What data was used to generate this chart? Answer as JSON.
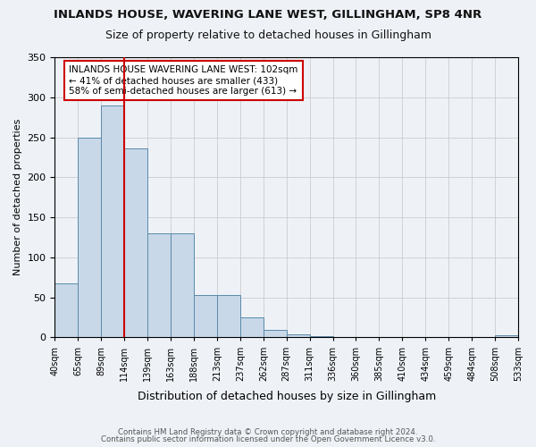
{
  "title": "INLANDS HOUSE, WAVERING LANE WEST, GILLINGHAM, SP8 4NR",
  "subtitle": "Size of property relative to detached houses in Gillingham",
  "xlabel": "Distribution of detached houses by size in Gillingham",
  "ylabel": "Number of detached properties",
  "bar_values": [
    68,
    250,
    290,
    236,
    130,
    130,
    53,
    53,
    25,
    10,
    4,
    2,
    1,
    1,
    0,
    1,
    0,
    0,
    0,
    3
  ],
  "categories": [
    "40sqm",
    "65sqm",
    "89sqm",
    "114sqm",
    "139sqm",
    "163sqm",
    "188sqm",
    "213sqm",
    "237sqm",
    "262sqm",
    "287sqm",
    "311sqm",
    "336sqm",
    "360sqm",
    "385sqm",
    "410sqm",
    "434sqm",
    "459sqm",
    "484sqm",
    "508sqm",
    "533sqm"
  ],
  "bar_color": "#c8d8e8",
  "bar_edge_color": "#5a8aaa",
  "property_line_x": 2.5,
  "annotation_text": "INLANDS HOUSE WAVERING LANE WEST: 102sqm\n← 41% of detached houses are smaller (433)\n58% of semi-detached houses are larger (613) →",
  "annotation_box_color": "#ffffff",
  "annotation_box_edge": "#cc0000",
  "vline_color": "#cc0000",
  "ylim": [
    0,
    350
  ],
  "yticks": [
    0,
    50,
    100,
    150,
    200,
    250,
    300,
    350
  ],
  "footer1": "Contains HM Land Registry data © Crown copyright and database right 2024.",
  "footer2": "Contains public sector information licensed under the Open Government Licence v3.0.",
  "bg_color": "#eef2f7",
  "plot_bg_color": "#eef2f7"
}
